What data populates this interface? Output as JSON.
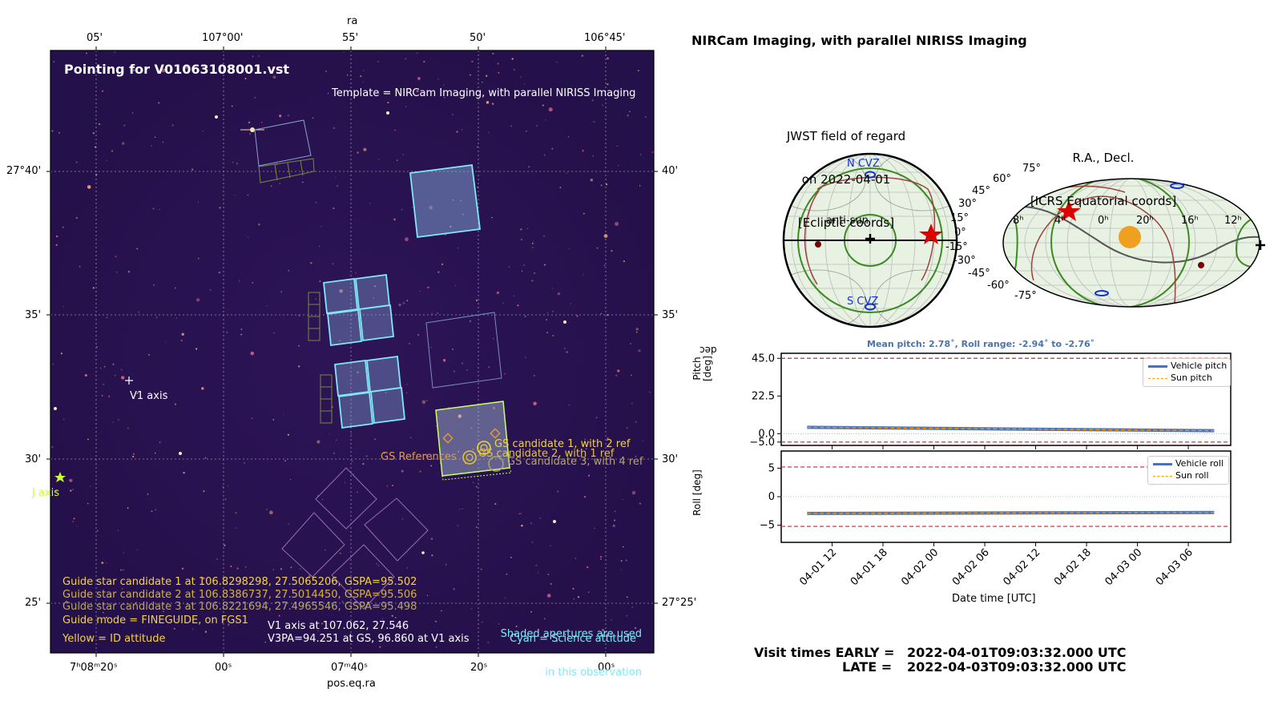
{
  "sky": {
    "title": "Pointing for V01063108001.vst",
    "template": "Template = NIRCam Imaging, with parallel NIRISS Imaging",
    "top_axis_label": "ra",
    "top_ticks": [
      "05'",
      "107°00'",
      "55'",
      "50'",
      "106°45'"
    ],
    "left_ticks": [
      "27°40'",
      "35'",
      "30'",
      "25'"
    ],
    "right_ticks": [
      "40'",
      "35'",
      "30'",
      "27°25'"
    ],
    "right_axis_label": "dec",
    "bottom_ticks": [
      "7ʰ08ᵐ20ˢ",
      "00ˢ",
      "07ᵐ40ˢ",
      "20ˢ",
      "00ˢ"
    ],
    "bottom_axis_label": "pos.eq.ra",
    "v1_label": "V1 axis",
    "j_label": "J axis",
    "gs_labels": [
      "GS candidate 1, with 2 ref",
      "GS candidate 2, with 1 ref",
      "GS candidate 3, with 4 ref"
    ],
    "gs_references_label": "GS References",
    "gs_lines": [
      "Guide star candidate 1 at 106.8298298, 27.5065206, GSPA=95.502",
      "Guide star candidate 2 at 106.8386737, 27.5014450, GSPA=95.506",
      "Guide star candidate 3 at 106.8221694, 27.4965546, GSPA=95.498"
    ],
    "guide_mode": "Guide mode = FINEGUIDE, on FGS1",
    "yellow_note": "Yellow = ID attitude",
    "v1_info": "V1 axis at 107.062, 27.546",
    "v3pa_info": "V3PA=94.251 at GS, 96.860 at V1 axis",
    "shaded_note_1": "Shaded apertures are used",
    "shaded_note_2": "in this observation",
    "cyan_note": "Cyan = Science attitude"
  },
  "header_title": "NIRCam Imaging, with parallel NIRISS Imaging",
  "for_plot": {
    "title_1": "JWST field of regard",
    "title_2": "on 2022-04-01",
    "title_3": "[Ecliptic coords]",
    "ncvz": "N CVZ",
    "scvz": "S CVZ",
    "antisun": "anti-sun"
  },
  "radec_plot": {
    "title_1": "R.A., Decl.",
    "title_2": "[ICRS Equatorial coords]",
    "dec_labels": [
      "75°",
      "60°",
      "45°",
      "30°",
      "15°",
      "0°",
      "-15°",
      "-30°",
      "-45°",
      "-60°",
      "-75°"
    ],
    "ra_labels": [
      "8ʰ",
      "4ʰ",
      "0ʰ",
      "20ʰ",
      "16ʰ",
      "12ʰ"
    ]
  },
  "chart_data": [
    {
      "type": "line",
      "title": "Mean pitch: 2.78$^\\circ$, Roll range: -2.94$^\\circ$ to -2.76$^\\circ$",
      "title_display": "Mean pitch: 2.78˚, Roll range: -2.94˚ to -2.76˚",
      "ylabel": "Pitch\n[deg]",
      "ylabel_display": "Pitch [deg]",
      "yticks": [
        "45.0",
        "22.5",
        "0.0",
        "−5.0"
      ],
      "ylim": [
        -7,
        48
      ],
      "limits": [
        45.0,
        -5.0
      ],
      "x": [
        "2022-04-01T09:03",
        "2022-04-03T09:03"
      ],
      "series": [
        {
          "name": "Vehicle pitch",
          "values": [
            3.8,
            1.8
          ],
          "color": "#4c72b0"
        },
        {
          "name": "Sun pitch",
          "values": [
            3.8,
            1.8
          ],
          "color": "#ff9900"
        }
      ],
      "grid": false,
      "legend": "top-right"
    },
    {
      "type": "line",
      "ylabel": "Roll\n[deg]",
      "ylabel_display": "Roll [deg]",
      "yticks": [
        "5",
        "0",
        "−5"
      ],
      "ylim": [
        -8,
        8
      ],
      "limits": [
        5.2,
        -5.2
      ],
      "x": [
        "2022-04-01T09:03",
        "2022-04-03T09:03"
      ],
      "series": [
        {
          "name": "Vehicle roll",
          "values": [
            -2.94,
            -2.76
          ],
          "color": "#4c72b0"
        },
        {
          "name": "Sun roll",
          "values": [
            -2.94,
            -2.76
          ],
          "color": "#ff9900"
        }
      ],
      "xticks": [
        "04-01 12",
        "04-01 18",
        "04-02 00",
        "04-02 06",
        "04-02 12",
        "04-02 18",
        "04-03 00",
        "04-03 06"
      ],
      "xlabel": "Date time [UTC]",
      "grid": false,
      "legend": "top-right"
    }
  ],
  "visit_times": {
    "early_label": "Visit times EARLY =",
    "early_value": "2022-04-01T09:03:32.000 UTC",
    "late_label": "LATE =",
    "late_value": "2022-04-03T09:03:32.000 UTC"
  },
  "colors": {
    "sky_bg": "#2a1250",
    "cyan": "#7fe9f5",
    "gold": "#f5d33a",
    "orange": "#e49a3b",
    "grayish_gold": "#b8a46a",
    "lime": "#ccff33",
    "series_blue": "#4c72b0",
    "sun_orange": "#ff9900",
    "limit_red": "#dd2222"
  }
}
